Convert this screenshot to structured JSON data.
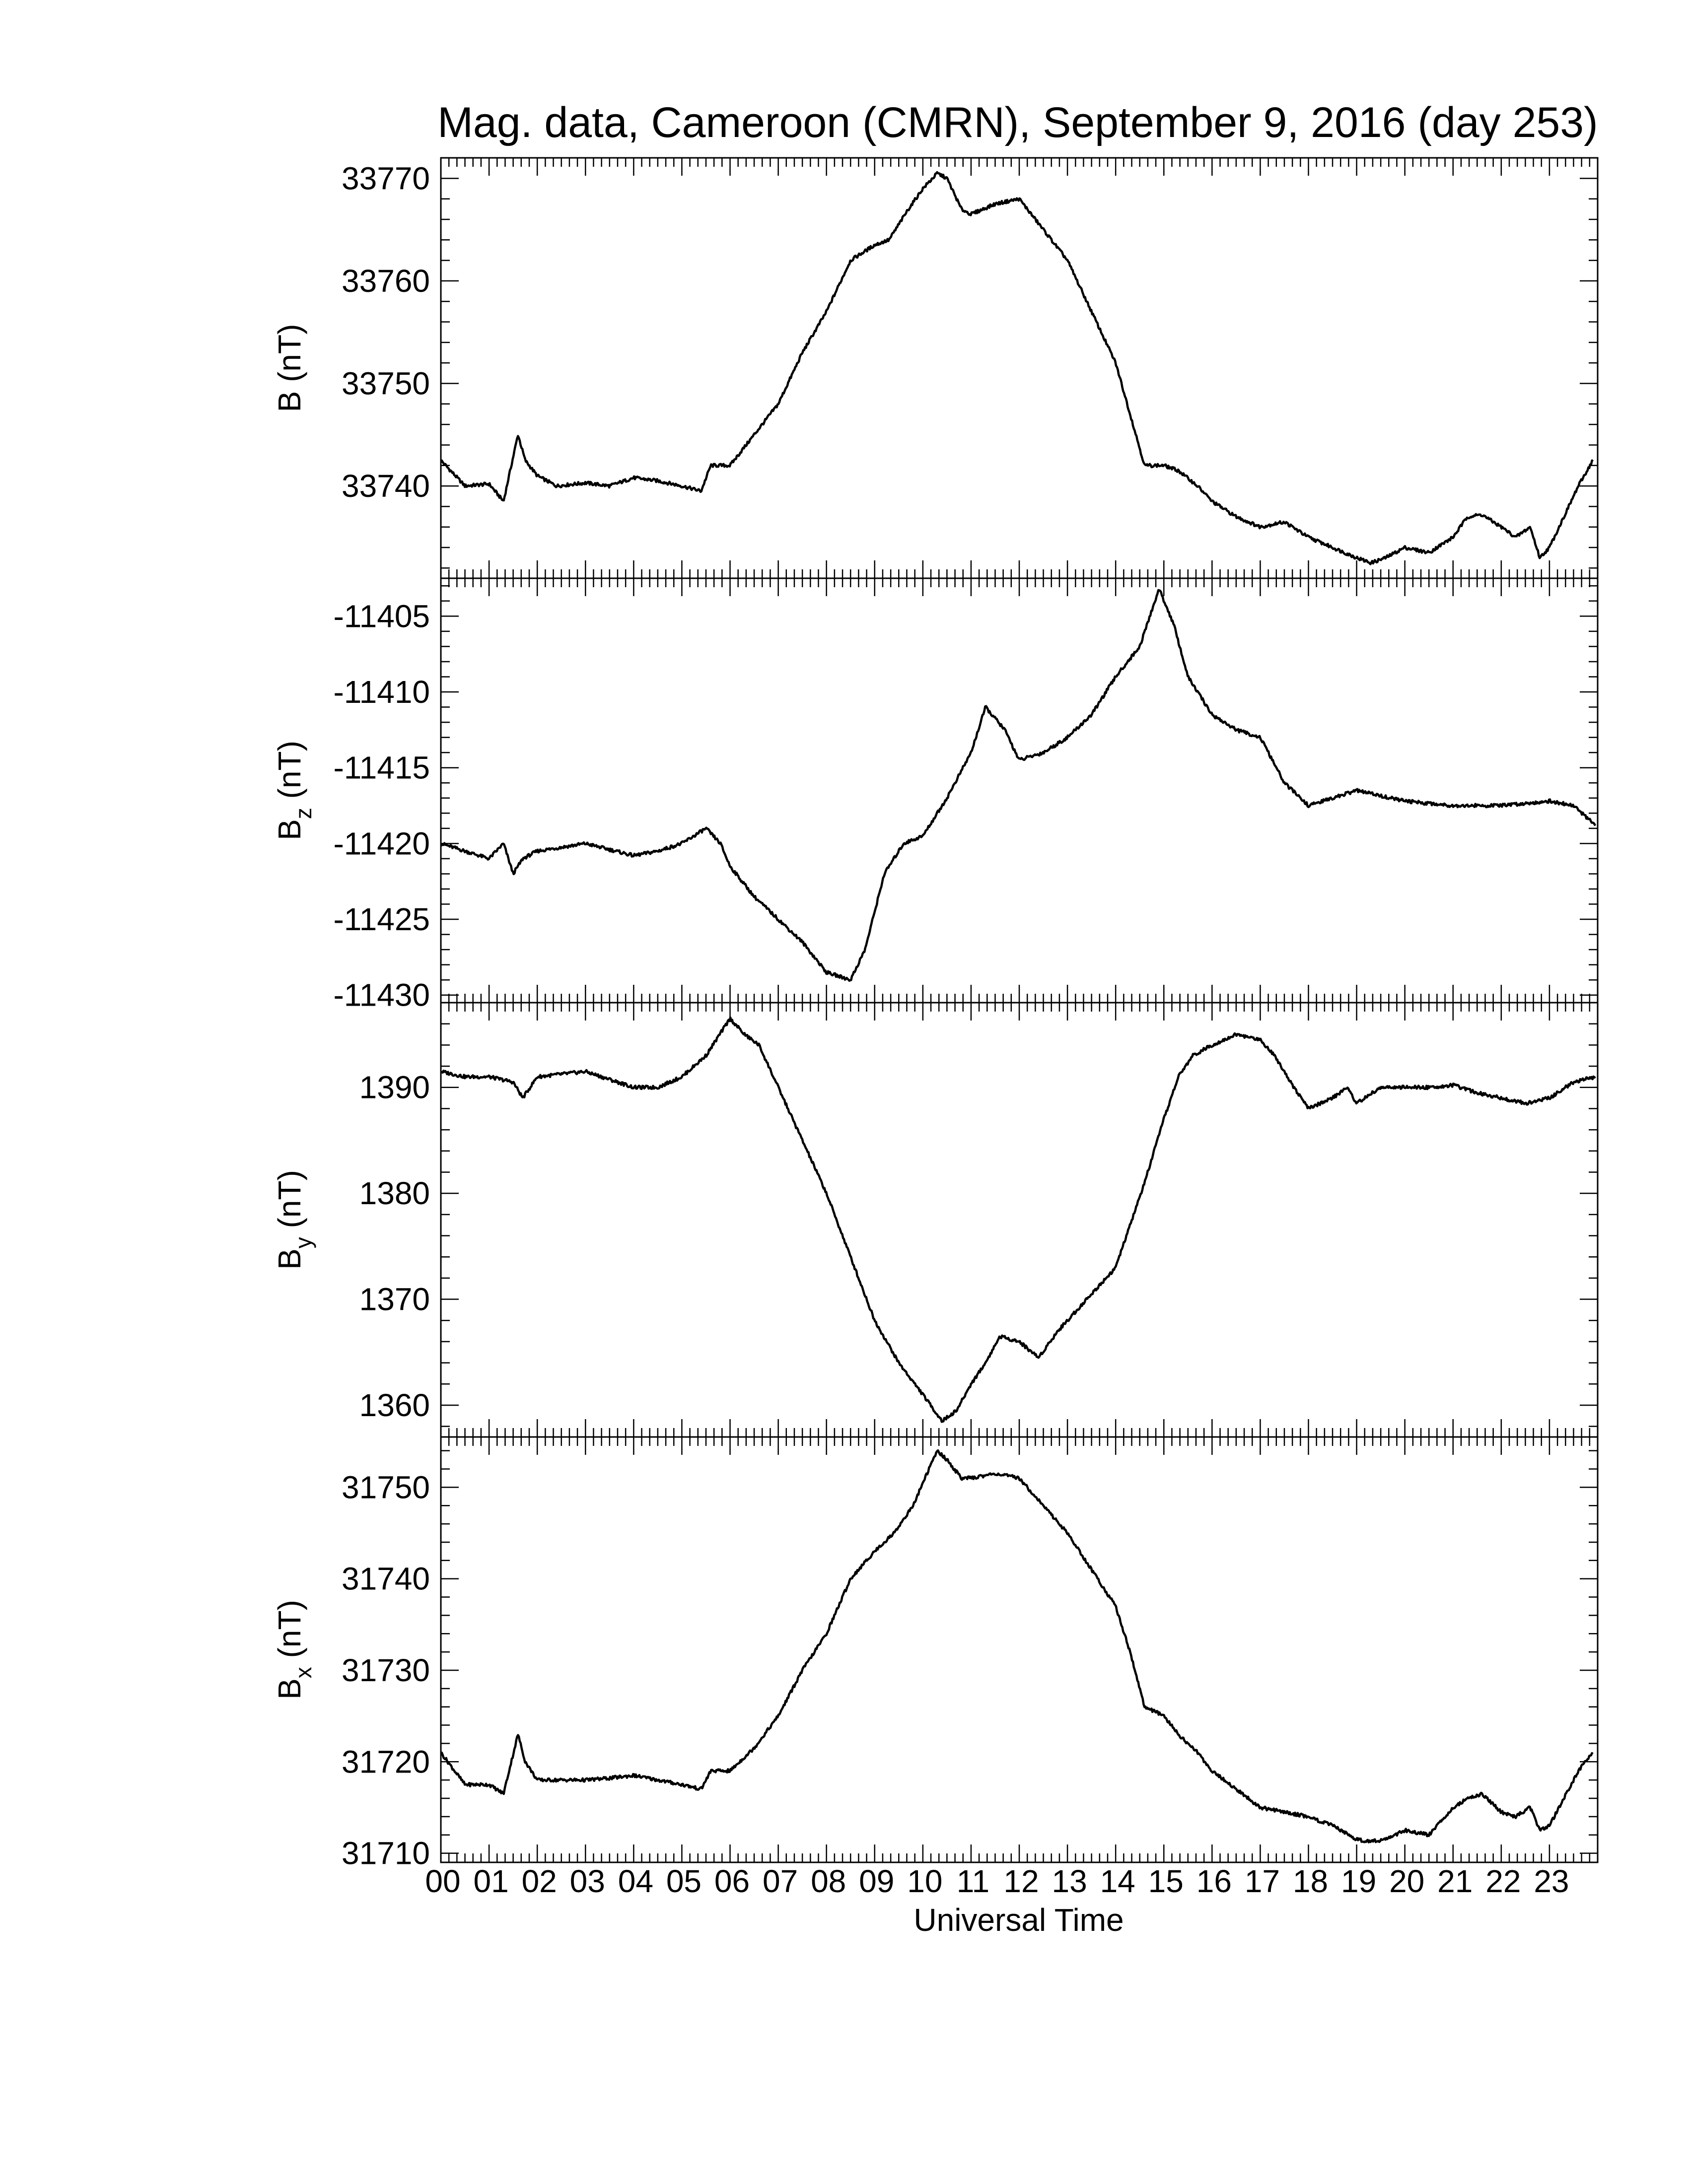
{
  "title": "Mag. data, Cameroon (CMRN), September 9, 2016 (day 253)",
  "colors": {
    "line": "#000000",
    "background": "#ffffff",
    "frame": "#000000"
  },
  "chart_data": [
    {
      "type": "line",
      "panel": "B",
      "ylabel": "B (nT)",
      "ylabel_main": "B",
      "ylabel_sub": "",
      "ylabel_unit": "(nT)",
      "ylim": [
        33731,
        33772
      ],
      "yticks": [
        33740,
        33750,
        33760,
        33770
      ],
      "x": [
        0,
        0.5,
        1,
        1.3,
        1.6,
        1.75,
        2,
        2.4,
        3,
        3.5,
        4,
        4.5,
        5,
        5.4,
        5.6,
        6,
        6.5,
        7,
        7.5,
        8,
        8.5,
        9,
        9.3,
        9.7,
        10,
        10.3,
        10.5,
        10.8,
        11,
        11.5,
        12,
        12.5,
        13,
        13.5,
        14,
        14.3,
        14.6,
        15,
        15.3,
        15.7,
        16,
        16.5,
        17,
        17.5,
        18,
        18.5,
        19,
        19.3,
        19.6,
        20,
        20.5,
        21,
        21.3,
        21.6,
        22,
        22.3,
        22.6,
        22.8,
        23,
        23.3,
        23.6,
        23.9
      ],
      "values": [
        33742.5,
        33740,
        33740.2,
        33738.5,
        33745,
        33742.5,
        33741,
        33740,
        33740.3,
        33740,
        33740.8,
        33740.5,
        33740,
        33739.5,
        33742,
        33742,
        33745,
        33748,
        33753,
        33757,
        33762,
        33763.5,
        33764,
        33767,
        33769,
        33770.5,
        33770,
        33767,
        33766.5,
        33767.5,
        33768,
        33765,
        33762,
        33757,
        33752,
        33747,
        33742,
        33742,
        33741.5,
        33740,
        33738.5,
        33737,
        33736,
        33736.5,
        33735,
        33734,
        33733,
        33732.5,
        33733,
        33734,
        33733.5,
        33735,
        33737,
        33737.2,
        33736,
        33735,
        33736,
        33733,
        33734,
        33737,
        33740,
        33742.5
      ]
    },
    {
      "type": "line",
      "panel": "Bz",
      "ylabel": "Bz (nT)",
      "ylabel_main": "B",
      "ylabel_sub": "z",
      "ylabel_unit": "(nT)",
      "ylim": [
        -11430.5,
        -11402.5
      ],
      "yticks": [
        -11405,
        -11410,
        -11415,
        -11420,
        -11425,
        -11430
      ],
      "x": [
        0,
        0.5,
        1,
        1.3,
        1.5,
        1.7,
        2,
        3,
        4,
        4.5,
        5,
        5.5,
        5.8,
        6,
        6.5,
        7,
        7.5,
        8,
        8.5,
        8.8,
        9.2,
        9.6,
        10,
        10.5,
        11,
        11.3,
        11.7,
        12,
        12.5,
        13,
        13.5,
        14,
        14.5,
        14.9,
        15.2,
        15.5,
        16,
        16.5,
        17,
        17.5,
        18,
        19,
        20,
        21,
        22,
        23,
        23.5,
        23.95
      ],
      "values": [
        -11420,
        -11420.5,
        -11421,
        -11420,
        -11422,
        -11421,
        -11420.5,
        -11420,
        -11420.8,
        -11420.5,
        -11420,
        -11419,
        -11420,
        -11421.5,
        -11423.5,
        -11425,
        -11426.5,
        -11428.5,
        -11429,
        -11427,
        -11422,
        -11420,
        -11419.5,
        -11417,
        -11414,
        -11411,
        -11412.5,
        -11414.5,
        -11414,
        -11413,
        -11411.5,
        -11409,
        -11407,
        -11403.2,
        -11405.5,
        -11409,
        -11411.5,
        -11412.5,
        -11413,
        -11416,
        -11417.5,
        -11416.5,
        -11417.2,
        -11417.5,
        -11417.5,
        -11417.2,
        -11417.5,
        -11418.8
      ]
    },
    {
      "type": "line",
      "panel": "By",
      "ylabel": "By (nT)",
      "ylabel_main": "B",
      "ylabel_sub": "y",
      "ylabel_unit": "(nT)",
      "ylim": [
        1357,
        1398
      ],
      "yticks": [
        1360,
        1370,
        1380,
        1390
      ],
      "x": [
        0,
        0.5,
        1,
        1.5,
        1.7,
        2,
        3,
        4,
        4.5,
        5,
        5.5,
        6,
        6.3,
        6.6,
        7,
        7.3,
        7.6,
        8,
        8.5,
        9,
        9.5,
        10,
        10.4,
        10.7,
        11,
        11.3,
        11.6,
        12,
        12.4,
        12.8,
        13.2,
        13.6,
        14,
        14.3,
        14.6,
        15,
        15.3,
        15.6,
        16,
        16.5,
        17,
        17.3,
        17.7,
        18,
        18.5,
        18.8,
        19,
        19.5,
        20,
        20.5,
        21,
        21.5,
        22,
        22.5,
        23,
        23.5,
        23.95
      ],
      "values": [
        1391.5,
        1391,
        1391,
        1390.5,
        1389,
        1391,
        1391.5,
        1390,
        1390,
        1391,
        1393,
        1396.5,
        1395,
        1394,
        1390,
        1387,
        1384,
        1380,
        1374,
        1368,
        1364,
        1361,
        1358.5,
        1359.5,
        1362,
        1364,
        1366.5,
        1366,
        1364.5,
        1367,
        1369,
        1371,
        1373,
        1377,
        1381,
        1387,
        1391,
        1393,
        1394,
        1395,
        1394.5,
        1393,
        1390,
        1388,
        1389,
        1390,
        1388.5,
        1390,
        1390,
        1390,
        1390.2,
        1389.5,
        1389,
        1388.5,
        1389,
        1390.5,
        1391
      ]
    },
    {
      "type": "line",
      "panel": "Bx",
      "ylabel": "Bx (nT)",
      "ylabel_main": "B",
      "ylabel_sub": "x",
      "ylabel_unit": "(nT)",
      "ylim": [
        31709,
        31755.5
      ],
      "yticks": [
        31710,
        31720,
        31730,
        31740,
        31750
      ],
      "x": [
        0,
        0.5,
        1,
        1.3,
        1.6,
        1.75,
        2,
        2.4,
        3,
        3.5,
        4,
        4.5,
        5,
        5.4,
        5.6,
        6,
        6.5,
        7,
        7.5,
        8,
        8.5,
        9,
        9.4,
        9.8,
        10,
        10.3,
        10.5,
        10.8,
        11,
        11.5,
        12,
        12.5,
        13,
        13.5,
        14,
        14.3,
        14.6,
        15,
        15.3,
        15.7,
        16,
        16.5,
        17,
        17.5,
        18,
        18.5,
        19,
        19.3,
        19.6,
        20,
        20.5,
        21,
        21.3,
        21.6,
        22,
        22.3,
        22.6,
        22.8,
        23,
        23.3,
        23.6,
        23.9
      ],
      "values": [
        31721,
        31717.5,
        31717.5,
        31716.5,
        31723,
        31720,
        31718,
        31718,
        31718,
        31718.2,
        31718.5,
        31718,
        31717.5,
        31717,
        31719,
        31719,
        31721.5,
        31725,
        31730,
        31734,
        31740,
        31743,
        31745,
        31748,
        31750.5,
        31754,
        31753,
        31751,
        31751,
        31751.5,
        31751,
        31748,
        31745,
        31741,
        31737,
        31732,
        31726,
        31725,
        31723,
        31721,
        31719,
        31717,
        31715,
        31714.5,
        31714,
        31713,
        31711.5,
        31711.3,
        31711.5,
        31712.5,
        31712,
        31715,
        31716,
        31716.5,
        31714.5,
        31714,
        31715,
        31712.5,
        31713,
        31716,
        31719,
        31721
      ]
    }
  ],
  "shared_x": {
    "xlabel": "Universal Time",
    "xlim": [
      0,
      24
    ],
    "tick_labels": [
      "00",
      "01",
      "02",
      "03",
      "04",
      "05",
      "06",
      "07",
      "08",
      "09",
      "10",
      "11",
      "12",
      "13",
      "14",
      "15",
      "16",
      "17",
      "18",
      "19",
      "20",
      "21",
      "22",
      "23"
    ]
  }
}
